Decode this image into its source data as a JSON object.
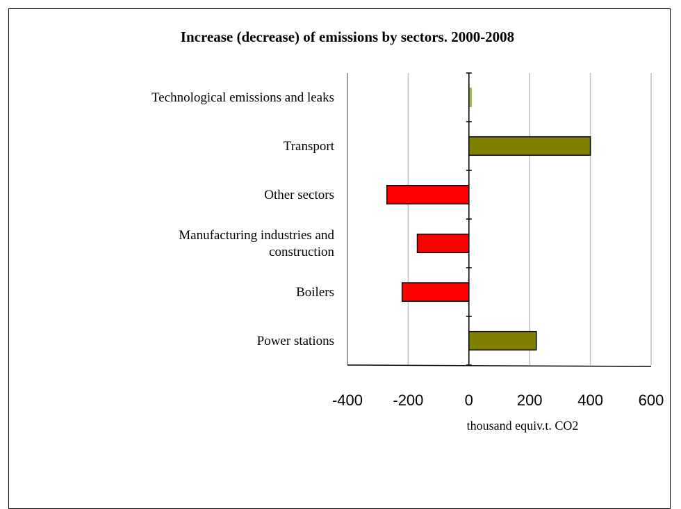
{
  "chart_data": {
    "type": "bar",
    "orientation": "horizontal",
    "title": "Increase (decrease) of emissions by sectors. 2000-2008",
    "xlabel": "thousand equiv.t. CO2",
    "ylabel": "",
    "xlim": [
      -400,
      600
    ],
    "xticks": [
      "-400",
      "-200",
      "0",
      "200",
      "400",
      "600"
    ],
    "grid": true,
    "categories": [
      [
        "Technological emissions and leaks"
      ],
      [
        "Transport"
      ],
      [
        "Other sectors"
      ],
      [
        "Manufacturing industries and",
        "construction"
      ],
      [
        "Boilers"
      ],
      [
        "Power stations"
      ]
    ],
    "values": [
      8,
      400,
      -270,
      -170,
      -220,
      222
    ],
    "colors": {
      "positive": "#808000",
      "negative": "#ff0000",
      "small_positive": "#9bbb59"
    }
  }
}
